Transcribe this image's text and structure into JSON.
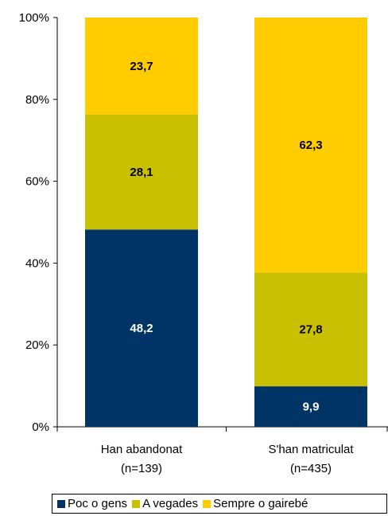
{
  "chart_data": {
    "type": "bar",
    "stacked": true,
    "percent": true,
    "categories": [
      "Han abandonat",
      "S'han matriculat"
    ],
    "category_sublabels": [
      "(n=139)",
      "(n=435)"
    ],
    "series": [
      {
        "name": "Poc o gens",
        "values": [
          48.2,
          9.9
        ],
        "color": "#003366",
        "label_color": "#ffffff"
      },
      {
        "name": "A vegades",
        "values": [
          28.1,
          27.8
        ],
        "color": "#c8c000",
        "label_color": "#000000"
      },
      {
        "name": "Sempre o gairebé",
        "values": [
          23.7,
          62.3
        ],
        "color": "#ffcc00",
        "label_color": "#000000"
      }
    ],
    "data_labels": [
      [
        "48,2",
        "9,9"
      ],
      [
        "28,1",
        "27,8"
      ],
      [
        "23,7",
        "62,3"
      ]
    ],
    "ylim": [
      0,
      100
    ],
    "yticks": [
      "0%",
      "20%",
      "40%",
      "60%",
      "80%",
      "100%"
    ],
    "legend_position": "bottom",
    "grid": false,
    "title": "",
    "xlabel": "",
    "ylabel": ""
  }
}
